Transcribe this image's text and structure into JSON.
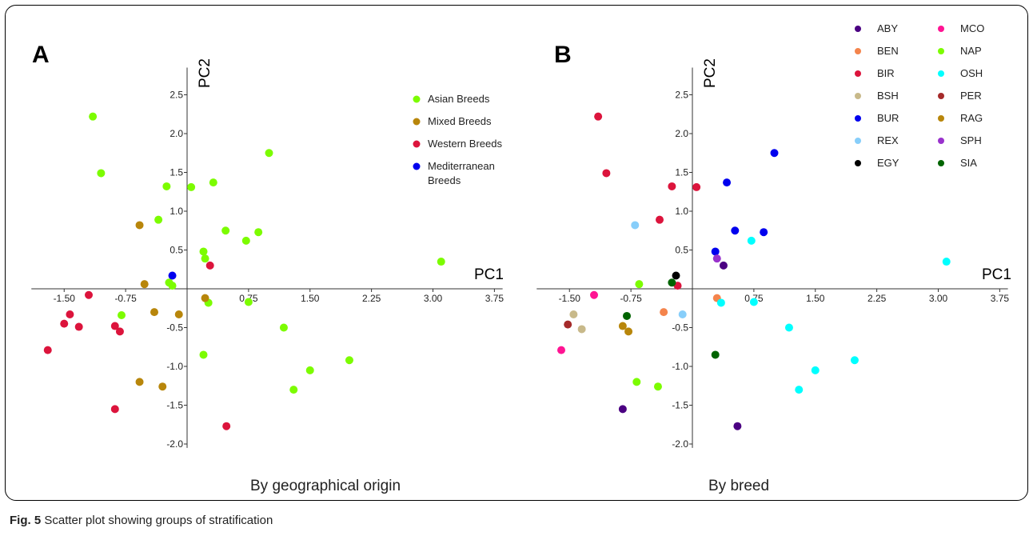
{
  "figure_label": "Fig. 5",
  "figure_caption": "Scatter plot showing groups of stratification",
  "colors": {
    "Asian Breeds": "#7cfc00",
    "Mixed Breeds": "#b8860b",
    "Western Breeds": "#dc143c",
    "Mediterranean Breeds": "#0000ee",
    "ABY": "#4b0082",
    "BEN": "#f4844c",
    "BIR": "#dc143c",
    "BSH": "#c8b98a",
    "BUR": "#0000ee",
    "REX": "#87cefa",
    "EGY": "#000000",
    "MCO": "#ff1493",
    "NAP": "#7cfc00",
    "OSH": "#00ffff",
    "PER": "#a52a2a",
    "RAG": "#b8860b",
    "SPH": "#9932cc",
    "SIA": "#006400"
  },
  "chart_data": [
    {
      "type": "scatter",
      "panel": "A",
      "title": "By geographical origin",
      "xlabel": "PC1",
      "ylabel": "PC2",
      "xlim": [
        -1.9,
        3.85
      ],
      "ylim": [
        -2.05,
        2.85
      ],
      "xticks": [
        -1.5,
        -0.75,
        0.75,
        1.5,
        2.25,
        3.0,
        3.75
      ],
      "xtick_labels": [
        "-1.50",
        "-0.75",
        "0.75",
        "1.50",
        "2.25",
        "3.00",
        "3.75"
      ],
      "yticks": [
        2.5,
        2.0,
        1.5,
        1.0,
        0.5,
        -0.5,
        -1.0,
        -1.5,
        -2.0
      ],
      "ytick_labels": [
        "2.5",
        "2.0",
        "1.5",
        "1.0",
        "0.5",
        "-0.5",
        "-1.0",
        "-1.5",
        "-2.0"
      ],
      "legend": [
        "Asian Breeds",
        "Mixed Breeds",
        "Western Breeds",
        "Mediterranean Breeds"
      ],
      "legend_position": "top-right",
      "series": [
        {
          "name": "Asian Breeds",
          "points": [
            [
              -1.15,
              2.22
            ],
            [
              -1.05,
              1.49
            ],
            [
              -0.25,
              1.32
            ],
            [
              0.05,
              1.31
            ],
            [
              0.32,
              1.37
            ],
            [
              1.0,
              1.75
            ],
            [
              -0.35,
              0.89
            ],
            [
              0.47,
              0.75
            ],
            [
              0.72,
              0.62
            ],
            [
              0.87,
              0.73
            ],
            [
              0.2,
              0.48
            ],
            [
              0.22,
              0.39
            ],
            [
              3.1,
              0.35
            ],
            [
              -0.22,
              0.08
            ],
            [
              -0.18,
              0.04
            ],
            [
              0.26,
              -0.18
            ],
            [
              0.75,
              -0.17
            ],
            [
              -0.8,
              -0.34
            ],
            [
              1.18,
              -0.5
            ],
            [
              0.2,
              -0.85
            ],
            [
              1.5,
              -1.05
            ],
            [
              1.98,
              -0.92
            ],
            [
              1.3,
              -1.3
            ]
          ]
        },
        {
          "name": "Mixed Breeds",
          "points": [
            [
              -0.58,
              0.82
            ],
            [
              -0.52,
              0.06
            ],
            [
              0.22,
              -0.12
            ],
            [
              -0.4,
              -0.3
            ],
            [
              -0.1,
              -0.33
            ],
            [
              -0.58,
              -1.2
            ],
            [
              -0.3,
              -1.26
            ]
          ]
        },
        {
          "name": "Western Breeds",
          "points": [
            [
              0.28,
              0.3
            ],
            [
              -1.2,
              -0.08
            ],
            [
              -1.43,
              -0.33
            ],
            [
              -1.5,
              -0.45
            ],
            [
              -1.32,
              -0.49
            ],
            [
              -0.88,
              -0.48
            ],
            [
              -0.82,
              -0.55
            ],
            [
              -1.7,
              -0.79
            ],
            [
              -0.88,
              -1.55
            ],
            [
              0.48,
              -1.77
            ]
          ]
        },
        {
          "name": "Mediterranean Breeds",
          "points": [
            [
              -0.18,
              0.17
            ]
          ]
        }
      ]
    },
    {
      "type": "scatter",
      "panel": "B",
      "title": "By breed",
      "xlabel": "PC1",
      "ylabel": "PC2",
      "xlim": [
        -1.9,
        3.85
      ],
      "ylim": [
        -2.05,
        2.85
      ],
      "xticks": [
        -1.5,
        -0.75,
        0.75,
        1.5,
        2.25,
        3.0,
        3.75
      ],
      "xtick_labels": [
        "-1.50",
        "-0.75",
        "0.75",
        "1.50",
        "2.25",
        "3.00",
        "3.75"
      ],
      "yticks": [
        2.5,
        2.0,
        1.5,
        1.0,
        0.5,
        -0.5,
        -1.0,
        -1.5,
        -2.0
      ],
      "ytick_labels": [
        "2.5",
        "2.0",
        "1.5",
        "1.0",
        "0.5",
        "-0.5",
        "-1.0",
        "-1.5",
        "-2.0"
      ],
      "legend": [
        "ABY",
        "BEN",
        "BIR",
        "BSH",
        "BUR",
        "REX",
        "EGY",
        "MCO",
        "NAP",
        "OSH",
        "PER",
        "RAG",
        "SPH",
        "SIA"
      ],
      "legend_position": "top-right",
      "series": [
        {
          "name": "ABY",
          "points": [
            [
              0.38,
              0.3
            ],
            [
              -0.85,
              -1.55
            ],
            [
              0.55,
              -1.77
            ]
          ]
        },
        {
          "name": "BEN",
          "points": [
            [
              0.3,
              -0.12
            ],
            [
              -0.35,
              -0.3
            ]
          ]
        },
        {
          "name": "BIR",
          "points": [
            [
              -1.15,
              2.22
            ],
            [
              -1.05,
              1.49
            ],
            [
              -0.25,
              1.32
            ],
            [
              0.05,
              1.31
            ],
            [
              -0.4,
              0.89
            ],
            [
              -0.18,
              0.04
            ]
          ]
        },
        {
          "name": "BSH",
          "points": [
            [
              -1.45,
              -0.33
            ],
            [
              -1.35,
              -0.52
            ]
          ]
        },
        {
          "name": "BUR",
          "points": [
            [
              1.0,
              1.75
            ],
            [
              0.42,
              1.37
            ],
            [
              0.52,
              0.75
            ],
            [
              0.87,
              0.73
            ],
            [
              0.28,
              0.48
            ]
          ]
        },
        {
          "name": "REX",
          "points": [
            [
              -0.7,
              0.82
            ],
            [
              -0.12,
              -0.33
            ]
          ]
        },
        {
          "name": "EGY",
          "points": [
            [
              -0.2,
              0.17
            ]
          ]
        },
        {
          "name": "MCO",
          "points": [
            [
              -1.2,
              -0.08
            ],
            [
              -1.6,
              -0.79
            ]
          ]
        },
        {
          "name": "NAP",
          "points": [
            [
              -0.65,
              0.06
            ],
            [
              -0.68,
              -1.2
            ],
            [
              -0.42,
              -1.26
            ]
          ]
        },
        {
          "name": "OSH",
          "points": [
            [
              0.72,
              0.62
            ],
            [
              3.1,
              0.35
            ],
            [
              0.75,
              -0.17
            ],
            [
              0.35,
              -0.18
            ],
            [
              1.18,
              -0.5
            ],
            [
              1.5,
              -1.05
            ],
            [
              1.98,
              -0.92
            ],
            [
              1.3,
              -1.3
            ]
          ]
        },
        {
          "name": "PER",
          "points": [
            [
              -1.52,
              -0.46
            ]
          ]
        },
        {
          "name": "RAG",
          "points": [
            [
              -0.85,
              -0.48
            ],
            [
              -0.78,
              -0.55
            ]
          ]
        },
        {
          "name": "SPH",
          "points": [
            [
              0.3,
              0.39
            ]
          ]
        },
        {
          "name": "SIA",
          "points": [
            [
              -0.25,
              0.08
            ],
            [
              -0.8,
              -0.35
            ],
            [
              0.28,
              -0.85
            ]
          ]
        }
      ]
    }
  ]
}
